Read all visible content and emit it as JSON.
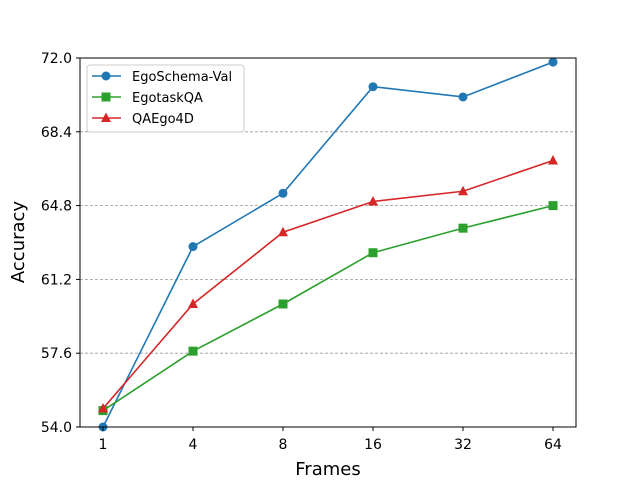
{
  "chart_data": {
    "type": "line",
    "title": "",
    "xlabel": "Frames",
    "ylabel": "Accuracy",
    "categories": [
      "1",
      "4",
      "8",
      "16",
      "32",
      "64"
    ],
    "ylim": [
      54.0,
      72.0
    ],
    "yticks": [
      "54.0",
      "57.6",
      "61.2",
      "64.8",
      "68.4",
      "72.0"
    ],
    "grid": "horizontal dashed",
    "legend": "top-left",
    "series": [
      {
        "name": "EgoSchema-Val",
        "color": "#1f77b4",
        "marker": "circle",
        "values": [
          54.0,
          62.8,
          65.4,
          70.6,
          70.1,
          71.8
        ]
      },
      {
        "name": "EgotaskQA",
        "color": "#2ca02c",
        "marker": "square",
        "values": [
          54.8,
          57.7,
          60.0,
          62.5,
          63.7,
          64.8
        ]
      },
      {
        "name": "QAEgo4D",
        "color": "#d62728",
        "marker": "triangle",
        "values": [
          54.9,
          60.0,
          63.5,
          65.0,
          65.5,
          67.0
        ]
      }
    ]
  }
}
